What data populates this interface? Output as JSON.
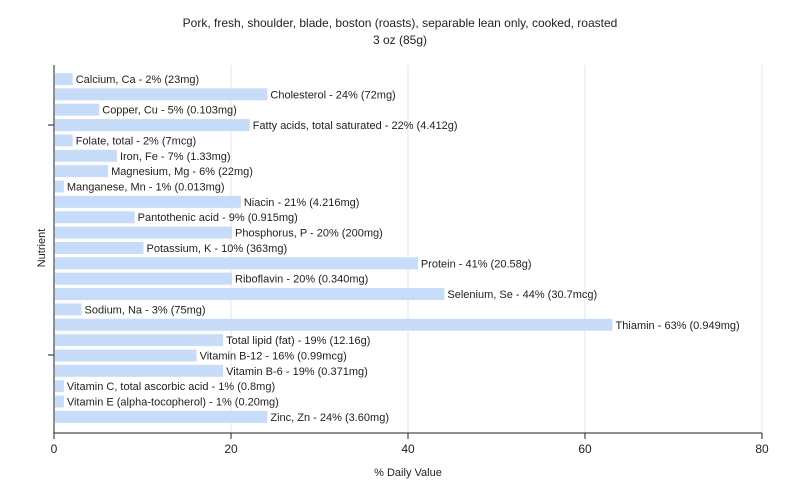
{
  "chart_data": {
    "type": "bar",
    "orientation": "horizontal",
    "title": "Pork, fresh, shoulder, blade, boston (roasts), separable lean only, cooked, roasted",
    "subtitle": "3 oz (85g)",
    "xlabel": "% Daily Value",
    "ylabel": "Nutrient",
    "xlim": [
      0,
      80
    ],
    "xticks": [
      0,
      20,
      40,
      60,
      80
    ],
    "grid": true,
    "bar_color": "#c6dcf8",
    "categories": [
      "Calcium, Ca",
      "Cholesterol",
      "Copper, Cu",
      "Fatty acids, total saturated",
      "Folate, total",
      "Iron, Fe",
      "Magnesium, Mg",
      "Manganese, Mn",
      "Niacin",
      "Pantothenic acid",
      "Phosphorus, P",
      "Potassium, K",
      "Protein",
      "Riboflavin",
      "Selenium, Se",
      "Sodium, Na",
      "Thiamin",
      "Total lipid (fat)",
      "Vitamin B-12",
      "Vitamin B-6",
      "Vitamin C, total ascorbic acid",
      "Vitamin E (alpha-tocopherol)",
      "Zinc, Zn"
    ],
    "values": [
      2,
      24,
      5,
      22,
      2,
      7,
      6,
      1,
      21,
      9,
      20,
      10,
      41,
      20,
      44,
      3,
      63,
      19,
      16,
      19,
      1,
      1,
      24
    ],
    "labels": [
      "Calcium, Ca - 2% (23mg)",
      "Cholesterol - 24% (72mg)",
      "Copper, Cu - 5% (0.103mg)",
      "Fatty acids, total saturated - 22% (4.412g)",
      "Folate, total - 2% (7mcg)",
      "Iron, Fe - 7% (1.33mg)",
      "Magnesium, Mg - 6% (22mg)",
      "Manganese, Mn - 1% (0.013mg)",
      "Niacin - 21% (4.216mg)",
      "Pantothenic acid - 9% (0.915mg)",
      "Phosphorus, P - 20% (200mg)",
      "Potassium, K - 10% (363mg)",
      "Protein - 41% (20.58g)",
      "Riboflavin - 20% (0.340mg)",
      "Selenium, Se - 44% (30.7mcg)",
      "Sodium, Na - 3% (75mg)",
      "Thiamin - 63% (0.949mg)",
      "Total lipid (fat) - 19% (12.16g)",
      "Vitamin B-12 - 16% (0.99mcg)",
      "Vitamin B-6 - 19% (0.371mg)",
      "Vitamin C, total ascorbic acid - 1% (0.8mg)",
      "Vitamin E (alpha-tocopherol) - 1% (0.20mg)",
      "Zinc, Zn - 24% (3.60mg)"
    ]
  }
}
